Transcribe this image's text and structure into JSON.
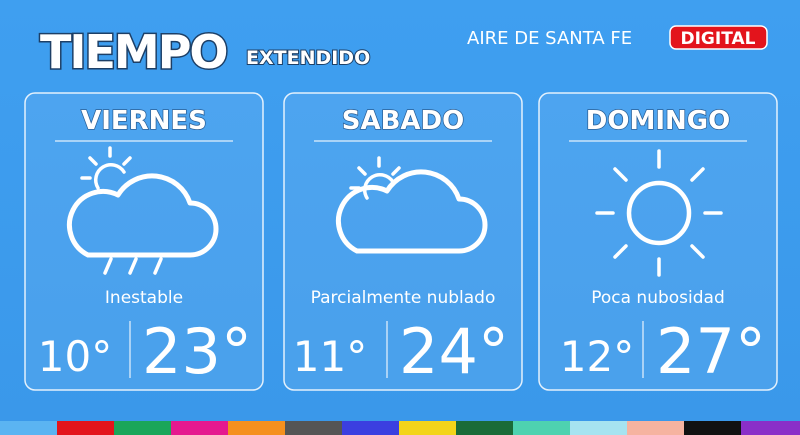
{
  "header": {
    "title": "TIEMPO",
    "subtitle": "EXTENDIDO",
    "brand": "AIRE DE SANTA FE",
    "badge": "DIGITAL"
  },
  "days": [
    {
      "name": "VIERNES",
      "condition": "Inestable",
      "min": "10°",
      "max": "23°"
    },
    {
      "name": "SABADO",
      "condition": "Parcialmente nublado",
      "min": "11°",
      "max": "24°"
    },
    {
      "name": "DOMINGO",
      "condition": "Poca nubosidad",
      "min": "12°",
      "max": "27°"
    }
  ]
}
